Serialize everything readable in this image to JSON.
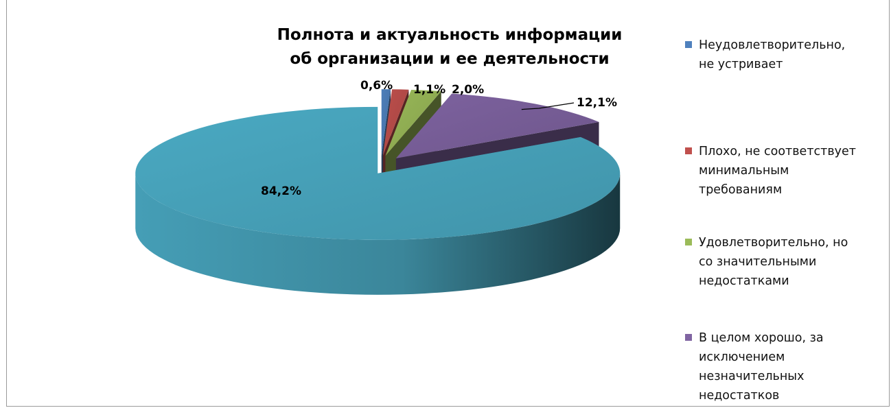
{
  "chart_data": {
    "type": "pie",
    "style": "3d-exploded",
    "title": "Полнота и актуальность информации об организации и ее деятельности",
    "title_lines": [
      "Полнота и актуальность информации",
      "об организации и ее деятельности"
    ],
    "legend_position": "right",
    "slices": [
      {
        "label": "Неудовлетворительно, не устривает",
        "label_lines": [
          "Неудовлетворительно,",
          "не устривает"
        ],
        "value": 0.6,
        "data_label": "0,6%",
        "color": "#4f81bd"
      },
      {
        "label": "Плохо, не соответствует минимальным требованиям",
        "label_lines": [
          "Плохо, не соответствует",
          "минимальным",
          "требованиям"
        ],
        "value": 1.1,
        "data_label": "1,1%",
        "color": "#c0504d"
      },
      {
        "label": "Удовлетворительно, но со значительными недостатками",
        "label_lines": [
          "Удовлетворительно, но",
          "со значительными",
          "недостатками"
        ],
        "value": 2.0,
        "data_label": "2,0%",
        "color": "#9bbb59"
      },
      {
        "label": "В целом хорошо, за исключением незначительных недостатков",
        "label_lines": [
          "В целом хорошо, за",
          "исключением",
          "незначительных",
          "недостатков"
        ],
        "value": 12.1,
        "data_label": "12,1%",
        "color": "#8064a2"
      },
      {
        "label": "",
        "label_lines": [],
        "value": 84.2,
        "data_label": "84,2%",
        "color": "#4bacc6"
      }
    ]
  }
}
